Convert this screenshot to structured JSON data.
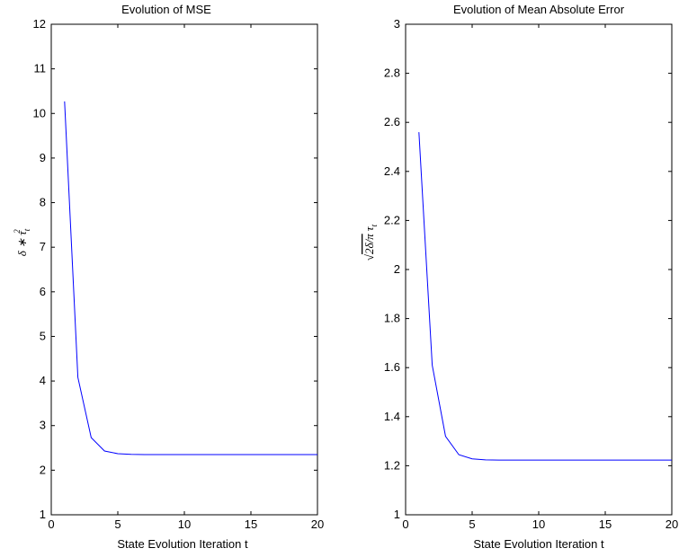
{
  "chart_data": [
    {
      "type": "line",
      "title": "Evolution of MSE",
      "xlabel": "State Evolution Iteration t",
      "ylabel": "δ * τ_t²",
      "xlim": [
        0,
        20
      ],
      "ylim": [
        1,
        12
      ],
      "xticks": [
        0,
        5,
        10,
        15,
        20
      ],
      "yticks": [
        1,
        2,
        3,
        4,
        5,
        6,
        7,
        8,
        9,
        10,
        11,
        12
      ],
      "grid": false,
      "series": [
        {
          "color": "#0000ff",
          "x": [
            1,
            2,
            3,
            4,
            5,
            6,
            7,
            8,
            9,
            10,
            11,
            12,
            13,
            14,
            15,
            16,
            17,
            18,
            19,
            20
          ],
          "y": [
            10.27,
            4.08,
            2.73,
            2.43,
            2.37,
            2.355,
            2.35,
            2.35,
            2.35,
            2.35,
            2.35,
            2.35,
            2.35,
            2.35,
            2.35,
            2.35,
            2.35,
            2.35,
            2.35,
            2.35
          ]
        }
      ]
    },
    {
      "type": "line",
      "title": "Evolution of Mean Absolute Error",
      "xlabel": "State Evolution Iteration t",
      "ylabel": "√(2δ/π) τ_t",
      "xlim": [
        0,
        20
      ],
      "ylim": [
        1,
        3
      ],
      "xticks": [
        0,
        5,
        10,
        15,
        20
      ],
      "yticks": [
        1,
        1.2,
        1.4,
        1.6,
        1.8,
        2,
        2.2,
        2.4,
        2.6,
        2.8,
        3
      ],
      "grid": false,
      "series": [
        {
          "color": "#0000ff",
          "x": [
            1,
            2,
            3,
            4,
            5,
            6,
            7,
            8,
            9,
            10,
            11,
            12,
            13,
            14,
            15,
            16,
            17,
            18,
            19,
            20
          ],
          "y": [
            2.56,
            1.61,
            1.32,
            1.245,
            1.228,
            1.224,
            1.223,
            1.223,
            1.223,
            1.223,
            1.223,
            1.223,
            1.223,
            1.223,
            1.223,
            1.223,
            1.223,
            1.223,
            1.223,
            1.223
          ]
        }
      ]
    }
  ]
}
